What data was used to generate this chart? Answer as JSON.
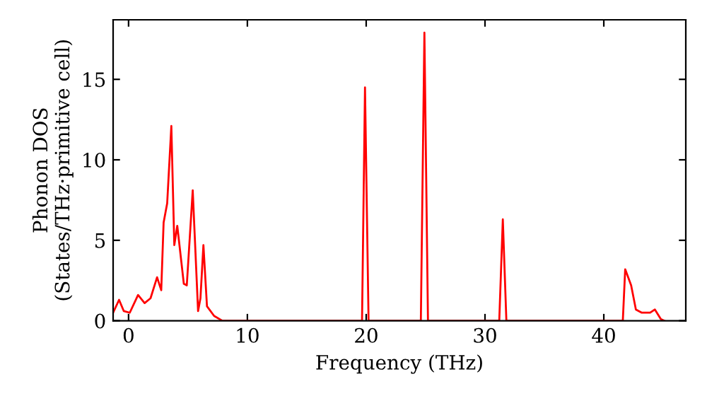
{
  "chart_data": {
    "type": "line",
    "xlabel": "Frequency (THz)",
    "ylabel": "Phonon DOS\n(States/THz·primitive cell)",
    "xlim": [
      -1.3,
      46.9
    ],
    "ylim": [
      0,
      18.7
    ],
    "xticks": [
      0,
      10,
      20,
      30,
      40
    ],
    "yticks": [
      0,
      5,
      10,
      15
    ],
    "grid": false,
    "marker": "none",
    "line_style": "solid",
    "series": [
      {
        "color": "#ff0000",
        "x": [
          -1.3,
          -0.8,
          -0.4,
          0.1,
          0.8,
          1.35,
          1.85,
          2.4,
          2.75,
          2.95,
          3.25,
          3.6,
          3.85,
          4.1,
          4.65,
          4.9,
          5.4,
          5.85,
          6.05,
          6.3,
          6.6,
          7.2,
          7.9,
          19.65,
          19.9,
          20.2,
          24.6,
          24.9,
          25.2,
          31.2,
          31.5,
          31.8,
          41.6,
          41.8,
          42.3,
          42.7,
          43.2,
          43.9,
          44.3,
          44.8,
          45.1
        ],
        "values": [
          0.5,
          1.3,
          0.6,
          0.5,
          1.6,
          1.1,
          1.4,
          2.7,
          1.9,
          6.1,
          7.3,
          12.1,
          4.7,
          5.9,
          2.3,
          2.2,
          8.1,
          0.6,
          1.4,
          4.7,
          0.9,
          0.3,
          0,
          0,
          14.5,
          0,
          0,
          17.9,
          0,
          0,
          6.3,
          0,
          0,
          3.2,
          2.2,
          0.7,
          0.5,
          0.5,
          0.7,
          0.1,
          0
        ]
      }
    ]
  }
}
